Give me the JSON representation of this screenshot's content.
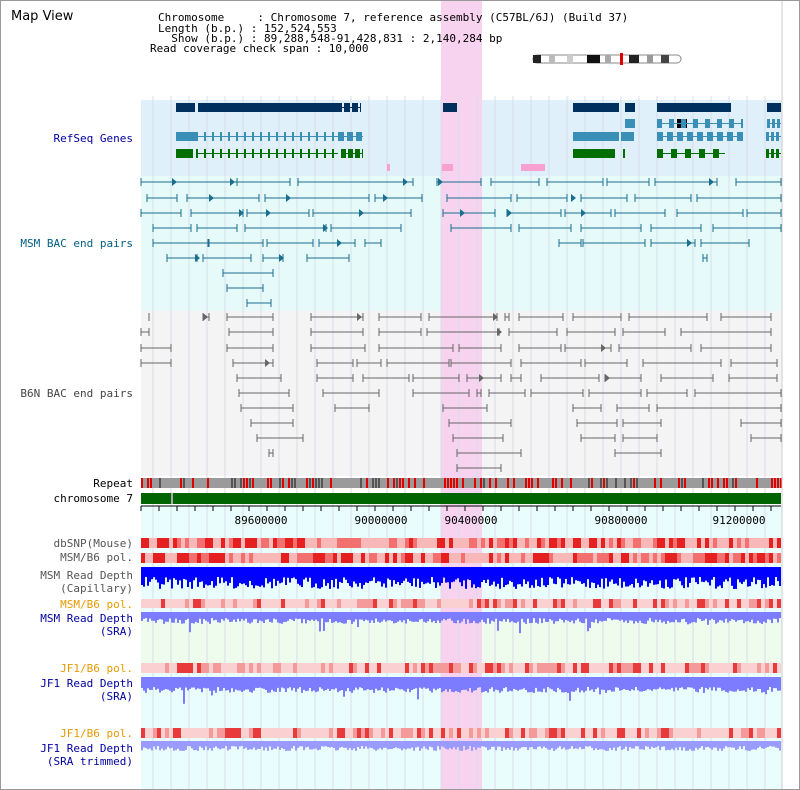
{
  "title": "Map View",
  "info": {
    "l1": "Chromosome     : Chromosome 7, reference assembly (C57BL/6J) (Build 37)",
    "l2": "Length (b.p.) : 152,524,553",
    "l3": "  Show (b.p.) : 89,288,548-91,428,831 : 2,140,284 bp",
    "l4": "Read coverage check span : 10,000"
  },
  "labels": {
    "refseq": "RefSeq Genes",
    "msm_bac": "MSM BAC end pairs",
    "b6n_bac": "B6N BAC end pairs",
    "repeat": "Repeat",
    "chromosome": "chromosome 7",
    "dbsnp": "dbSNP(Mouse)",
    "msm_b6_pol": "MSM/B6 pol.",
    "msm_depth_cap_1": "MSM Read Depth",
    "msm_depth_cap_2": "(Capillary)",
    "msm_b6_pol2": "MSM/B6 pol.",
    "msm_depth_sra_1": "MSM Read Depth",
    "msm_depth_sra_2": "(SRA)",
    "jf1_b6_pol": "JF1/B6 pol.",
    "jf1_depth_sra_1": "JF1 Read Depth",
    "jf1_depth_sra_2": "(SRA)",
    "jf1_b6_pol2": "JF1/B6 pol.",
    "jf1_depth_trim_1": "JF1 Read Depth",
    "jf1_depth_trim_2": "(SRA trimmed)"
  },
  "axis": {
    "ticks": [
      "89600000",
      "90000000",
      "90400000",
      "90800000",
      "91200000"
    ]
  },
  "colors": {
    "blue_label": "#0000a0",
    "teal_label": "#005f7f",
    "gray_label": "#444444",
    "orange_label": "#e69a00",
    "highlight": "#f8d3f0",
    "refseq_bg": "#dff0fa",
    "msm_bg": "#e6fafa",
    "b6n_bg": "#f4f4f4",
    "chrom_green": "#006400",
    "depth_blue": "#0000ff",
    "depth_lilac": "#7a7aff"
  }
}
